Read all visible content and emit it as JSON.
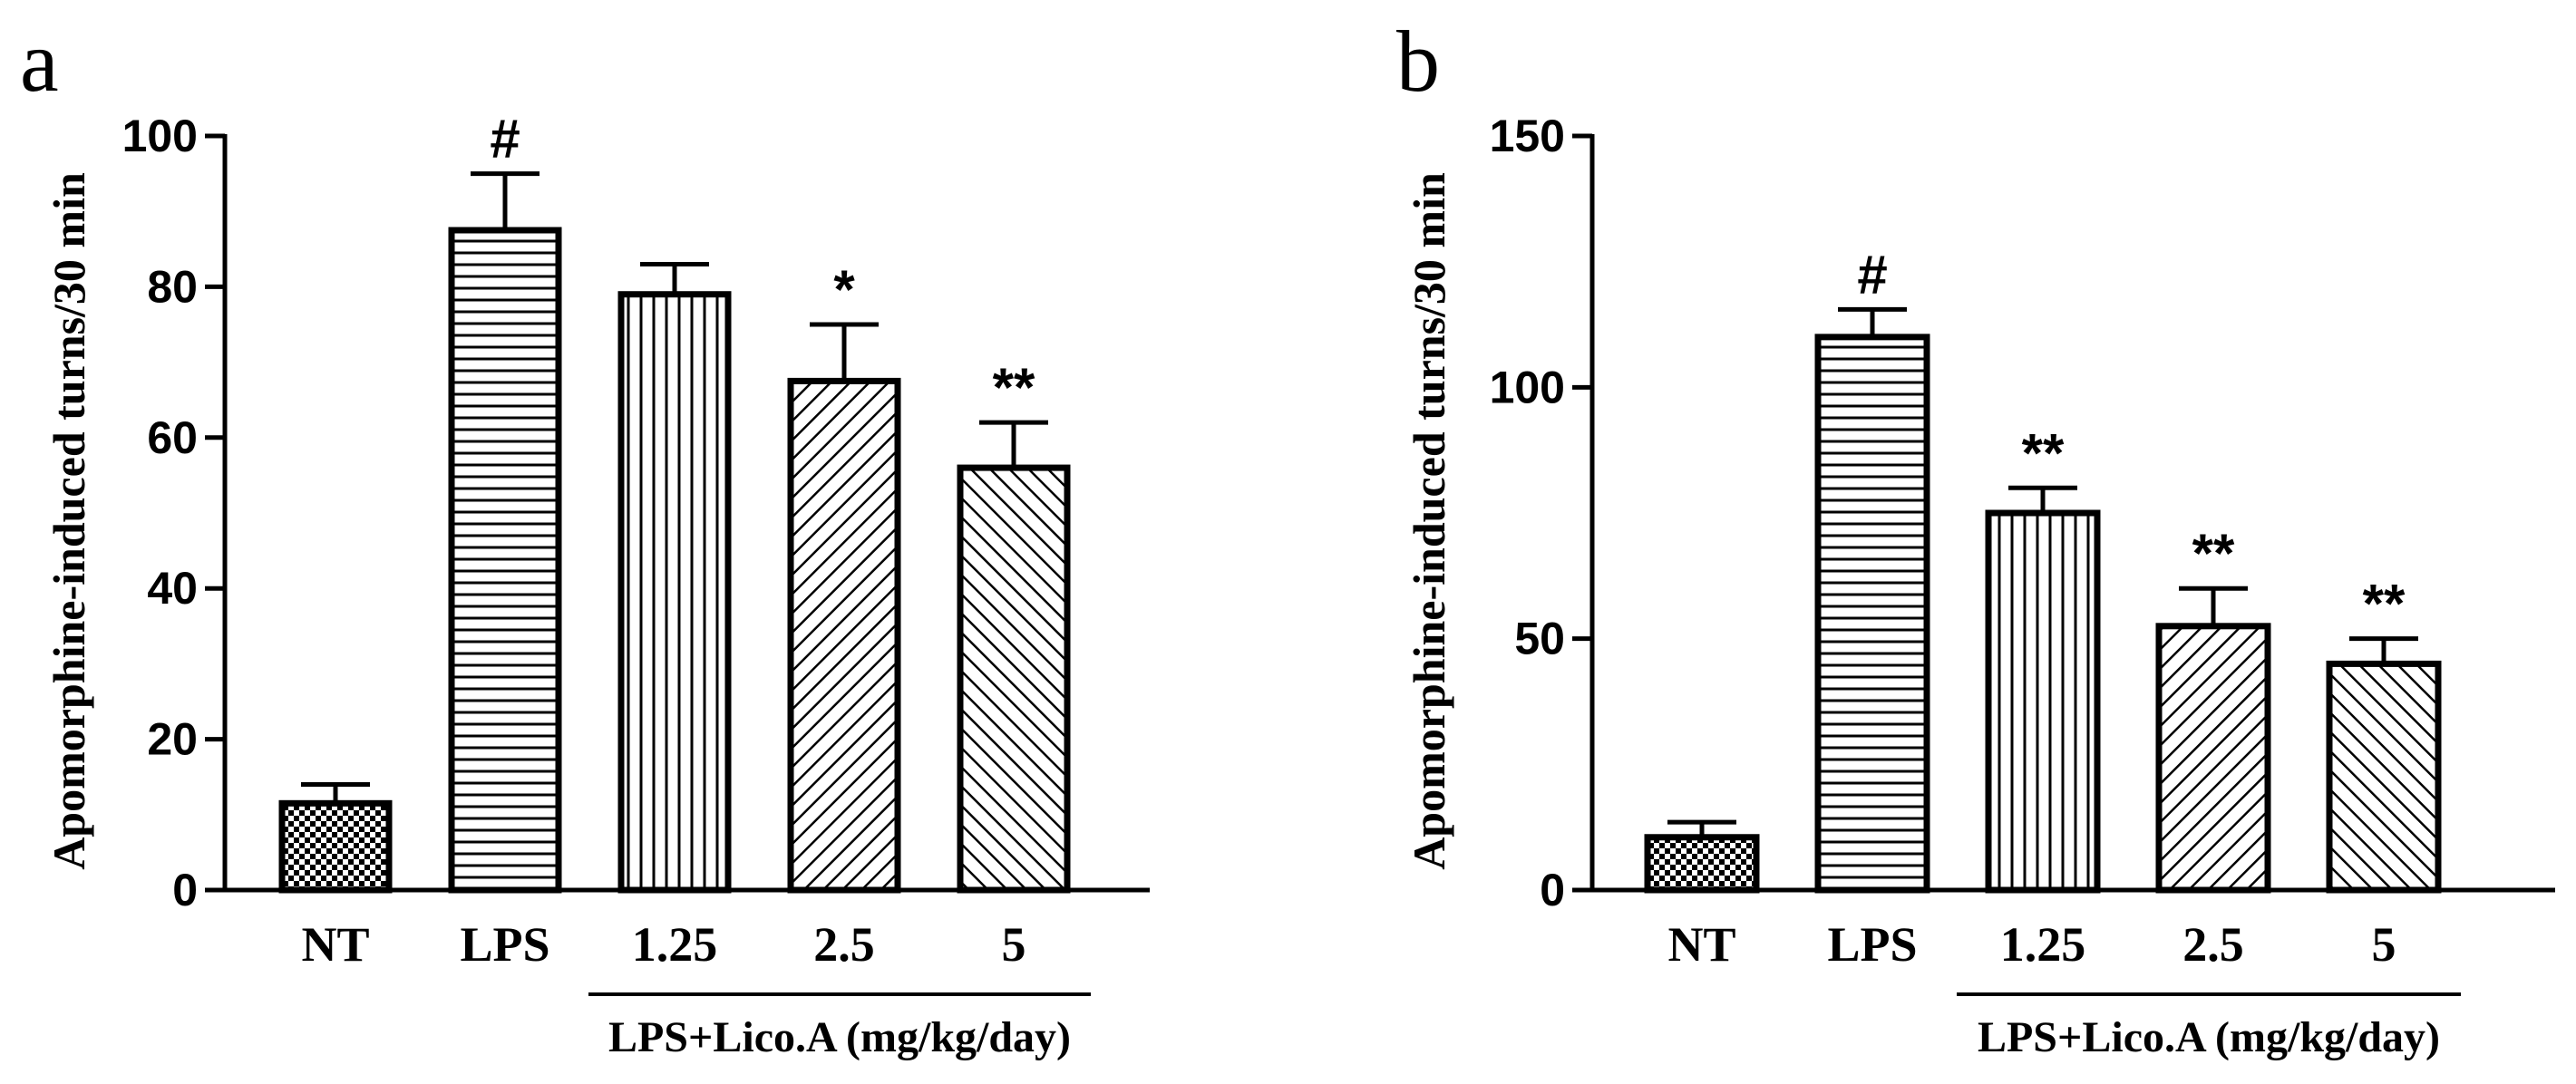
{
  "chart_data": [
    {
      "panel": "a",
      "type": "bar",
      "ylabel": "Apomorphine-induced turns/30 min",
      "ylim": [
        0,
        100
      ],
      "yticks": [
        0,
        20,
        40,
        60,
        80,
        100
      ],
      "categories": [
        "NT",
        "LPS",
        "1.25",
        "2.5",
        "5"
      ],
      "values": [
        11.5,
        87.5,
        79,
        67.5,
        56
      ],
      "errors": [
        2.5,
        7.5,
        4,
        7.5,
        6
      ],
      "significance": [
        "",
        "#",
        "",
        "*",
        "**"
      ],
      "patterns": [
        "checker",
        "horizontal",
        "vertical",
        "diag-up",
        "diag-down"
      ],
      "group_label": "LPS+Lico.A (mg/kg/day)",
      "group_span": [
        "1.25",
        "5"
      ]
    },
    {
      "panel": "b",
      "type": "bar",
      "ylabel": "Apomorphine-induced turns/30 min",
      "ylim": [
        0,
        150
      ],
      "yticks": [
        0,
        50,
        100,
        150
      ],
      "categories": [
        "NT",
        "LPS",
        "1.25",
        "2.5",
        "5"
      ],
      "values": [
        10.5,
        110,
        75,
        52.5,
        45
      ],
      "errors": [
        3,
        5.5,
        5,
        7.5,
        5
      ],
      "significance": [
        "",
        "#",
        "**",
        "**",
        "**"
      ],
      "patterns": [
        "checker",
        "horizontal",
        "vertical",
        "diag-up",
        "diag-down"
      ],
      "group_label": "LPS+Lico.A (mg/kg/day)",
      "group_span": [
        "1.25",
        "5"
      ]
    }
  ]
}
